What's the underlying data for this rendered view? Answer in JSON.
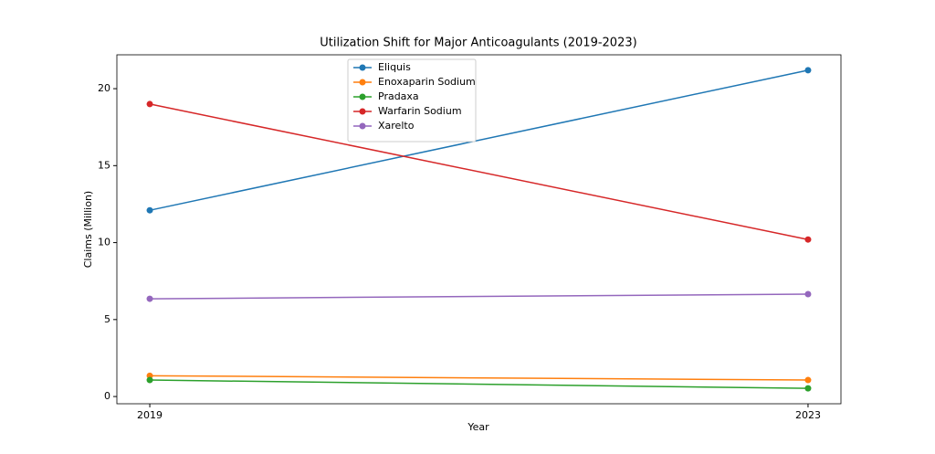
{
  "chart_data": {
    "type": "line",
    "title": "Utilization Shift for Major Anticoagulants (2019-2023)",
    "x_label": "Year",
    "y_label": "Claims (Million)",
    "x": [
      2019,
      2023
    ],
    "series": [
      {
        "name": "Eliquis",
        "color": "#1f77b4",
        "values": [
          12.1,
          21.2
        ]
      },
      {
        "name": "Enoxaparin Sodium",
        "color": "#ff7f0e",
        "values": [
          1.35,
          1.07
        ]
      },
      {
        "name": "Pradaxa",
        "color": "#2ca02c",
        "values": [
          1.07,
          0.53
        ]
      },
      {
        "name": "Warfarin Sodium",
        "color": "#d62728",
        "values": [
          19.0,
          10.2
        ]
      },
      {
        "name": "Xarelto",
        "color": "#9467bd",
        "values": [
          6.35,
          6.65
        ]
      }
    ],
    "xlim": [
      2018.8,
      2023.2
    ],
    "xticks": [
      2019,
      2023
    ],
    "ylim": [
      -0.47,
      22.2
    ],
    "yticks": [
      0,
      5,
      10,
      15,
      20
    ],
    "legend": "upper-center"
  }
}
